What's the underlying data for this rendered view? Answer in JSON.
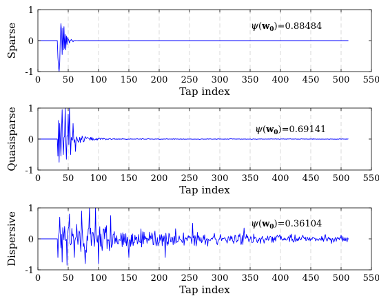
{
  "chart_data": [
    {
      "type": "line",
      "panel": "sparse",
      "xlabel": "Tap index",
      "ylabel": "Sparse",
      "xlim": [
        0,
        550
      ],
      "ylim": [
        -1,
        1
      ],
      "xticks": [
        0,
        50,
        100,
        150,
        200,
        250,
        300,
        350,
        400,
        450,
        500,
        550
      ],
      "yticks": [
        -1,
        0,
        1
      ],
      "grid": "vertical dashed",
      "annotation": {
        "func": "ψ",
        "arg": "w",
        "sub": "0",
        "value": "=0.88484"
      },
      "line_color": "#0000ff",
      "series": [
        {
          "x_start": 1,
          "x_end": 512,
          "onset": 32,
          "amplitude": 1.0,
          "decay": 5,
          "noise": 0.0,
          "envelope_floor": 0.0,
          "seed": 11,
          "peaks": [
            [
              33,
              -0.55
            ],
            [
              34,
              -0.85
            ],
            [
              35,
              -1.0
            ],
            [
              36,
              -0.7
            ],
            [
              37,
              0.15
            ],
            [
              38,
              0.55
            ],
            [
              39,
              0.3
            ],
            [
              40,
              -0.45
            ],
            [
              41,
              0.4
            ],
            [
              42,
              -0.3
            ],
            [
              43,
              0.45
            ],
            [
              44,
              -0.25
            ],
            [
              45,
              0.2
            ],
            [
              46,
              -0.3
            ],
            [
              47,
              0.15
            ],
            [
              48,
              -0.12
            ],
            [
              49,
              0.1
            ],
            [
              50,
              0.05
            ],
            [
              52,
              -0.08
            ],
            [
              55,
              0.04
            ],
            [
              58,
              -0.04
            ]
          ]
        }
      ]
    },
    {
      "type": "line",
      "panel": "quasisparse",
      "xlabel": "Tap index",
      "ylabel": "Quasisparse",
      "xlim": [
        0,
        550
      ],
      "ylim": [
        -1,
        1
      ],
      "xticks": [
        0,
        50,
        100,
        150,
        200,
        250,
        300,
        350,
        400,
        450,
        500,
        550
      ],
      "yticks": [
        -1,
        0,
        1
      ],
      "grid": "vertical dashed",
      "annotation": {
        "func": "ψ",
        "arg": "w",
        "sub": "0",
        "value": "=0.69141"
      },
      "line_color": "#0000ff",
      "series": [
        {
          "x_start": 1,
          "x_end": 512,
          "onset": 32,
          "amplitude": 0.75,
          "decay": 28,
          "noise": 0.008,
          "envelope_floor": 0.0,
          "seed": 23,
          "peaks": [
            [
              33,
              -0.55
            ],
            [
              34,
              0.6
            ],
            [
              35,
              -0.75
            ],
            [
              36,
              0.5
            ],
            [
              38,
              -0.55
            ],
            [
              40,
              0.95
            ],
            [
              42,
              -0.5
            ],
            [
              45,
              1.0
            ],
            [
              47,
              -0.65
            ],
            [
              50,
              0.8
            ],
            [
              52,
              1.0
            ],
            [
              54,
              -0.5
            ],
            [
              58,
              0.5
            ],
            [
              62,
              -0.4
            ]
          ]
        }
      ]
    },
    {
      "type": "line",
      "panel": "dispersive",
      "xlabel": "Tap index",
      "ylabel": "Dispersive",
      "xlim": [
        0,
        550
      ],
      "ylim": [
        -1,
        1
      ],
      "xticks": [
        0,
        50,
        100,
        150,
        200,
        250,
        300,
        350,
        400,
        450,
        500,
        550
      ],
      "yticks": [
        -1,
        0,
        1
      ],
      "grid": "vertical dashed",
      "annotation": {
        "func": "ψ",
        "arg": "w",
        "sub": "0",
        "value": "=0.36104"
      },
      "line_color": "#0000ff",
      "series": [
        {
          "x_start": 1,
          "x_end": 512,
          "onset": 32,
          "amplitude": 0.72,
          "decay": 190,
          "noise": 0.05,
          "envelope_floor": 0.08,
          "seed": 37,
          "peaks": [
            [
              36,
              0.7
            ],
            [
              40,
              -0.75
            ],
            [
              44,
              0.4
            ],
            [
              48,
              -0.85
            ],
            [
              52,
              0.8
            ],
            [
              60,
              -0.6
            ],
            [
              72,
              0.9
            ],
            [
              78,
              -0.8
            ],
            [
              85,
              1.0
            ],
            [
              95,
              1.0
            ],
            [
              100,
              -0.8
            ],
            [
              120,
              0.75
            ],
            [
              150,
              -0.6
            ],
            [
              210,
              -0.6
            ],
            [
              255,
              0.5
            ],
            [
              340,
              0.35
            ]
          ]
        }
      ]
    }
  ]
}
